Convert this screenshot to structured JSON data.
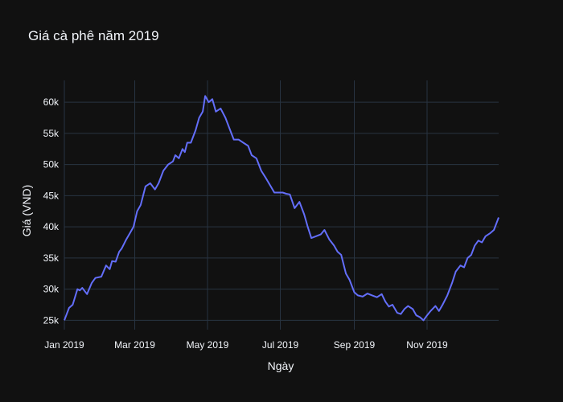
{
  "chart_data": {
    "type": "line",
    "title": "Giá cà phê năm 2019",
    "xlabel": "Ngày",
    "ylabel": "Giá (VND)",
    "xlim": [
      "2019-01-01",
      "2019-12-31"
    ],
    "ylim": [
      23500,
      63500
    ],
    "grid": true,
    "x_ticks": [
      {
        "date": "2019-01-01",
        "label": "Jan 2019"
      },
      {
        "date": "2019-03-01",
        "label": "Mar 2019"
      },
      {
        "date": "2019-05-01",
        "label": "May 2019"
      },
      {
        "date": "2019-07-01",
        "label": "Jul 2019"
      },
      {
        "date": "2019-09-01",
        "label": "Sep 2019"
      },
      {
        "date": "2019-11-01",
        "label": "Nov 2019"
      }
    ],
    "y_ticks": [
      {
        "value": 25000,
        "label": "25k"
      },
      {
        "value": 30000,
        "label": "30k"
      },
      {
        "value": 35000,
        "label": "35k"
      },
      {
        "value": 40000,
        "label": "40k"
      },
      {
        "value": 45000,
        "label": "45k"
      },
      {
        "value": 50000,
        "label": "50k"
      },
      {
        "value": 55000,
        "label": "55k"
      },
      {
        "value": 60000,
        "label": "60k"
      }
    ],
    "series": [
      {
        "color": "#636efa",
        "points": [
          [
            "2019-01-01",
            25000
          ],
          [
            "2019-01-05",
            27000
          ],
          [
            "2019-01-08",
            27500
          ],
          [
            "2019-01-12",
            30000
          ],
          [
            "2019-01-14",
            29800
          ],
          [
            "2019-01-16",
            30200
          ],
          [
            "2019-01-20",
            29200
          ],
          [
            "2019-01-24",
            31000
          ],
          [
            "2019-01-27",
            31800
          ],
          [
            "2019-02-01",
            32000
          ],
          [
            "2019-02-05",
            33800
          ],
          [
            "2019-02-08",
            33200
          ],
          [
            "2019-02-10",
            34500
          ],
          [
            "2019-02-13",
            34400
          ],
          [
            "2019-02-16",
            36000
          ],
          [
            "2019-02-18",
            36500
          ],
          [
            "2019-02-22",
            38000
          ],
          [
            "2019-02-25",
            39000
          ],
          [
            "2019-02-28",
            40000
          ],
          [
            "2019-03-03",
            42500
          ],
          [
            "2019-03-06",
            43500
          ],
          [
            "2019-03-10",
            46500
          ],
          [
            "2019-03-14",
            47000
          ],
          [
            "2019-03-18",
            46000
          ],
          [
            "2019-03-21",
            47000
          ],
          [
            "2019-03-25",
            49000
          ],
          [
            "2019-03-29",
            50000
          ],
          [
            "2019-04-02",
            50500
          ],
          [
            "2019-04-04",
            51500
          ],
          [
            "2019-04-07",
            51000
          ],
          [
            "2019-04-10",
            52500
          ],
          [
            "2019-04-12",
            52000
          ],
          [
            "2019-04-14",
            53500
          ],
          [
            "2019-04-17",
            53500
          ],
          [
            "2019-04-21",
            55500
          ],
          [
            "2019-04-24",
            57500
          ],
          [
            "2019-04-27",
            58500
          ],
          [
            "2019-04-29",
            61000
          ],
          [
            "2019-05-02",
            60000
          ],
          [
            "2019-05-05",
            60500
          ],
          [
            "2019-05-08",
            58500
          ],
          [
            "2019-05-12",
            59000
          ],
          [
            "2019-05-16",
            57500
          ],
          [
            "2019-05-20",
            55500
          ],
          [
            "2019-05-23",
            54000
          ],
          [
            "2019-05-27",
            54000
          ],
          [
            "2019-05-31",
            53500
          ],
          [
            "2019-06-04",
            53000
          ],
          [
            "2019-06-07",
            51500
          ],
          [
            "2019-06-11",
            51000
          ],
          [
            "2019-06-15",
            49000
          ],
          [
            "2019-06-19",
            47800
          ],
          [
            "2019-06-23",
            46500
          ],
          [
            "2019-06-26",
            45500
          ],
          [
            "2019-06-30",
            45500
          ],
          [
            "2019-07-03",
            45500
          ],
          [
            "2019-07-06",
            45300
          ],
          [
            "2019-07-09",
            45200
          ],
          [
            "2019-07-13",
            43000
          ],
          [
            "2019-07-17",
            44000
          ],
          [
            "2019-07-21",
            42000
          ],
          [
            "2019-07-24",
            40000
          ],
          [
            "2019-07-27",
            38200
          ],
          [
            "2019-07-31",
            38500
          ],
          [
            "2019-08-04",
            38800
          ],
          [
            "2019-08-07",
            39500
          ],
          [
            "2019-08-11",
            38000
          ],
          [
            "2019-08-15",
            37000
          ],
          [
            "2019-08-18",
            36000
          ],
          [
            "2019-08-21",
            35500
          ],
          [
            "2019-08-25",
            32500
          ],
          [
            "2019-08-28",
            31500
          ],
          [
            "2019-09-01",
            29500
          ],
          [
            "2019-09-04",
            29000
          ],
          [
            "2019-09-08",
            28800
          ],
          [
            "2019-09-12",
            29300
          ],
          [
            "2019-09-16",
            29000
          ],
          [
            "2019-09-20",
            28700
          ],
          [
            "2019-09-24",
            29200
          ],
          [
            "2019-09-27",
            28000
          ],
          [
            "2019-09-30",
            27200
          ],
          [
            "2019-10-03",
            27500
          ],
          [
            "2019-10-07",
            26200
          ],
          [
            "2019-10-10",
            26000
          ],
          [
            "2019-10-13",
            26800
          ],
          [
            "2019-10-16",
            27300
          ],
          [
            "2019-10-20",
            26800
          ],
          [
            "2019-10-23",
            25800
          ],
          [
            "2019-10-26",
            25500
          ],
          [
            "2019-10-29",
            25000
          ],
          [
            "2019-11-01",
            25800
          ],
          [
            "2019-11-04",
            26500
          ],
          [
            "2019-11-08",
            27300
          ],
          [
            "2019-11-11",
            26500
          ],
          [
            "2019-11-14",
            27500
          ],
          [
            "2019-11-18",
            29000
          ],
          [
            "2019-11-22",
            31000
          ],
          [
            "2019-11-25",
            32800
          ],
          [
            "2019-11-29",
            33800
          ],
          [
            "2019-12-02",
            33500
          ],
          [
            "2019-12-05",
            35000
          ],
          [
            "2019-12-08",
            35500
          ],
          [
            "2019-12-11",
            37000
          ],
          [
            "2019-12-14",
            37800
          ],
          [
            "2019-12-17",
            37500
          ],
          [
            "2019-12-20",
            38500
          ],
          [
            "2019-12-24",
            39000
          ],
          [
            "2019-12-27",
            39500
          ],
          [
            "2019-12-31",
            41500
          ]
        ]
      }
    ]
  }
}
